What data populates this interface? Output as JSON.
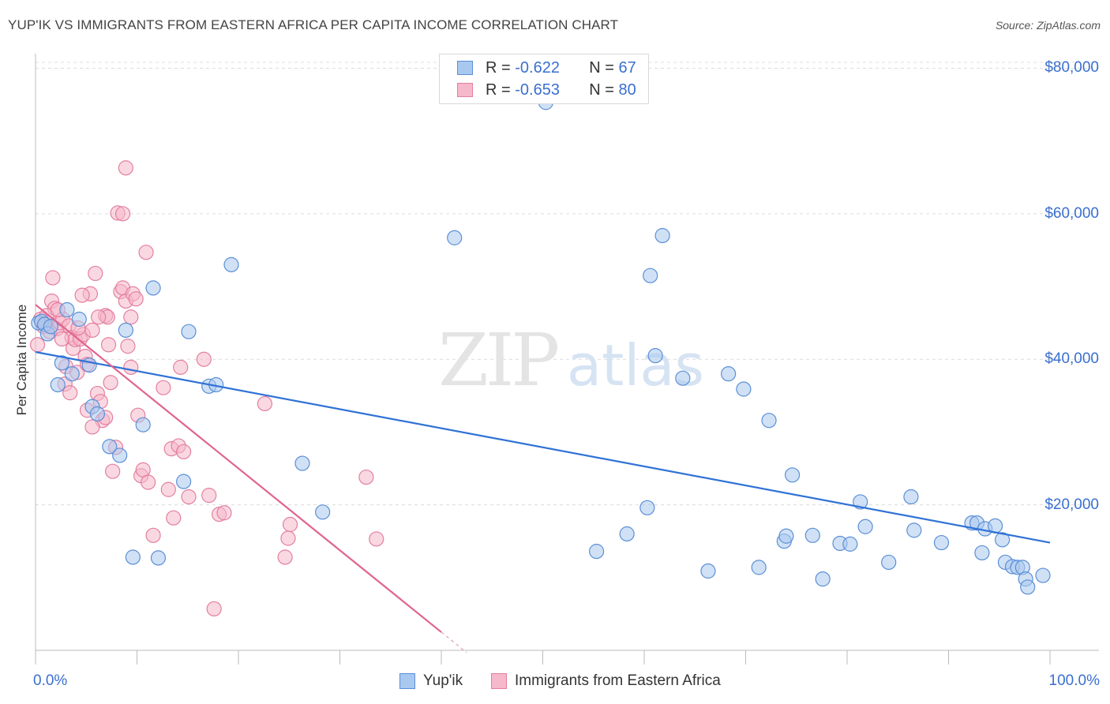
{
  "title": "YUP'IK VS IMMIGRANTS FROM EASTERN AFRICA PER CAPITA INCOME CORRELATION CHART",
  "source": "Source: ZipAtlas.com",
  "watermark": {
    "zip": "ZIP",
    "atlas": "atlas"
  },
  "legend": {
    "rows": [
      {
        "r_label": "R =",
        "r_value": "-0.622",
        "n_label": "N =",
        "n_value": "67"
      },
      {
        "r_label": "R =",
        "r_value": "-0.653",
        "n_label": "N =",
        "n_value": "80"
      }
    ]
  },
  "bottom_legend": [
    "Yup'ik",
    "Immigrants from Eastern Africa"
  ],
  "colors": {
    "blue_fill": "#a9c8ef",
    "blue_stroke": "#5b8fd6",
    "blue_line": "#2f72d6",
    "pink_fill": "#f6b8cb",
    "pink_stroke": "#e47fa0",
    "pink_line": "#e0648f",
    "tick_text": "#3a6fd0",
    "grid": "#dcdcdc"
  },
  "chart_data": {
    "type": "scatter",
    "title": "YUP'IK VS IMMIGRANTS FROM EASTERN AFRICA PER CAPITA INCOME CORRELATION CHART",
    "xlabel": "",
    "ylabel": "Per Capita Income",
    "xlim": [
      0,
      100
    ],
    "ylim": [
      0,
      82000
    ],
    "x_tick_labels": [
      "0.0%",
      "100.0%"
    ],
    "y_ticks": [
      20000,
      40000,
      60000,
      80000
    ],
    "y_tick_labels": [
      "$20,000",
      "$40,000",
      "$60,000",
      "$80,000"
    ],
    "grid": true,
    "legend_placement": "top-center",
    "series": [
      {
        "name": "Yup'ik",
        "color": "#5b8fd6",
        "r": "-0.622",
        "n": "67",
        "trend": {
          "x": [
            0,
            100
          ],
          "y": [
            41000,
            14800
          ]
        },
        "points": [
          [
            0.3,
            45000
          ],
          [
            0.6,
            45200
          ],
          [
            0.9,
            44800
          ],
          [
            1.2,
            43500
          ],
          [
            1.5,
            44500
          ],
          [
            2.2,
            36500
          ],
          [
            2.6,
            39500
          ],
          [
            3.1,
            46800
          ],
          [
            3.6,
            38000
          ],
          [
            4.3,
            45500
          ],
          [
            5.3,
            39200
          ],
          [
            5.6,
            33500
          ],
          [
            6.1,
            32500
          ],
          [
            7.3,
            28000
          ],
          [
            8.3,
            26800
          ],
          [
            8.9,
            44000
          ],
          [
            9.6,
            12800
          ],
          [
            10.6,
            31000
          ],
          [
            11.6,
            49800
          ],
          [
            12.1,
            12700
          ],
          [
            14.6,
            23200
          ],
          [
            15.1,
            43800
          ],
          [
            17.1,
            36300
          ],
          [
            17.8,
            36500
          ],
          [
            19.3,
            53000
          ],
          [
            26.3,
            25700
          ],
          [
            28.3,
            19000
          ],
          [
            41.3,
            56700
          ],
          [
            50.3,
            75300
          ],
          [
            55.3,
            13600
          ],
          [
            58.3,
            16000
          ],
          [
            60.3,
            19600
          ],
          [
            60.6,
            51500
          ],
          [
            61.1,
            40500
          ],
          [
            61.8,
            57000
          ],
          [
            63.8,
            37400
          ],
          [
            66.3,
            10900
          ],
          [
            68.3,
            38000
          ],
          [
            69.8,
            35900
          ],
          [
            71.3,
            11400
          ],
          [
            72.3,
            31600
          ],
          [
            73.8,
            15000
          ],
          [
            74.0,
            15700
          ],
          [
            74.6,
            24100
          ],
          [
            76.6,
            15800
          ],
          [
            77.6,
            9800
          ],
          [
            79.3,
            14700
          ],
          [
            80.3,
            14600
          ],
          [
            81.3,
            20400
          ],
          [
            81.8,
            17000
          ],
          [
            84.1,
            12100
          ],
          [
            86.3,
            21100
          ],
          [
            86.6,
            16500
          ],
          [
            89.3,
            14800
          ],
          [
            92.3,
            17500
          ],
          [
            92.8,
            17500
          ],
          [
            93.3,
            13400
          ],
          [
            93.6,
            16700
          ],
          [
            94.6,
            17100
          ],
          [
            95.3,
            15200
          ],
          [
            95.6,
            12100
          ],
          [
            96.3,
            11500
          ],
          [
            96.8,
            11400
          ],
          [
            97.3,
            11400
          ],
          [
            97.6,
            9800
          ],
          [
            97.8,
            8700
          ],
          [
            99.3,
            10300
          ]
        ]
      },
      {
        "name": "Immigrants from Eastern Africa",
        "color": "#e47fa0",
        "r": "-0.653",
        "n": "80",
        "trend": {
          "x": [
            0,
            40
          ],
          "y": [
            47500,
            2500
          ]
        },
        "points": [
          [
            0.2,
            42000
          ],
          [
            0.5,
            45500
          ],
          [
            0.8,
            44500
          ],
          [
            1.1,
            45000
          ],
          [
            1.4,
            43800
          ],
          [
            1.6,
            48000
          ],
          [
            1.7,
            51200
          ],
          [
            1.9,
            47000
          ],
          [
            2.1,
            44200
          ],
          [
            2.4,
            45000
          ],
          [
            2.7,
            45500
          ],
          [
            3.0,
            39000
          ],
          [
            3.3,
            44600
          ],
          [
            3.6,
            43000
          ],
          [
            3.7,
            41500
          ],
          [
            3.9,
            42700
          ],
          [
            4.1,
            38200
          ],
          [
            4.4,
            42800
          ],
          [
            4.7,
            43400
          ],
          [
            4.9,
            40400
          ],
          [
            5.1,
            39300
          ],
          [
            5.4,
            49000
          ],
          [
            5.6,
            44000
          ],
          [
            5.9,
            51800
          ],
          [
            6.1,
            35300
          ],
          [
            6.4,
            34200
          ],
          [
            6.6,
            31600
          ],
          [
            6.9,
            46000
          ],
          [
            7.1,
            45800
          ],
          [
            7.4,
            36800
          ],
          [
            7.6,
            24600
          ],
          [
            7.9,
            27900
          ],
          [
            8.1,
            60100
          ],
          [
            8.4,
            49300
          ],
          [
            8.6,
            49800
          ],
          [
            8.9,
            48000
          ],
          [
            9.1,
            41800
          ],
          [
            9.4,
            38900
          ],
          [
            9.6,
            49000
          ],
          [
            9.9,
            48300
          ],
          [
            10.1,
            32300
          ],
          [
            10.4,
            24000
          ],
          [
            10.6,
            24800
          ],
          [
            10.9,
            54700
          ],
          [
            11.1,
            23100
          ],
          [
            11.6,
            15800
          ],
          [
            12.6,
            36100
          ],
          [
            13.1,
            22100
          ],
          [
            13.4,
            27700
          ],
          [
            13.6,
            18200
          ],
          [
            14.1,
            28100
          ],
          [
            14.3,
            38900
          ],
          [
            14.6,
            27300
          ],
          [
            15.1,
            21100
          ],
          [
            16.6,
            40000
          ],
          [
            17.1,
            21300
          ],
          [
            17.6,
            5700
          ],
          [
            18.1,
            18700
          ],
          [
            18.6,
            18900
          ],
          [
            22.6,
            33900
          ],
          [
            24.6,
            12800
          ],
          [
            24.9,
            15400
          ],
          [
            25.1,
            17300
          ],
          [
            32.6,
            23800
          ],
          [
            33.6,
            15300
          ],
          [
            8.9,
            66300
          ],
          [
            8.6,
            60000
          ],
          [
            4.6,
            48800
          ],
          [
            2.9,
            36600
          ],
          [
            5.1,
            33000
          ],
          [
            5.6,
            30700
          ],
          [
            6.9,
            32000
          ],
          [
            3.4,
            35400
          ],
          [
            9.4,
            45800
          ],
          [
            1.1,
            46000
          ],
          [
            2.2,
            46800
          ],
          [
            4.2,
            44300
          ],
          [
            6.2,
            45800
          ],
          [
            7.2,
            42000
          ],
          [
            2.6,
            42800
          ]
        ]
      }
    ]
  }
}
